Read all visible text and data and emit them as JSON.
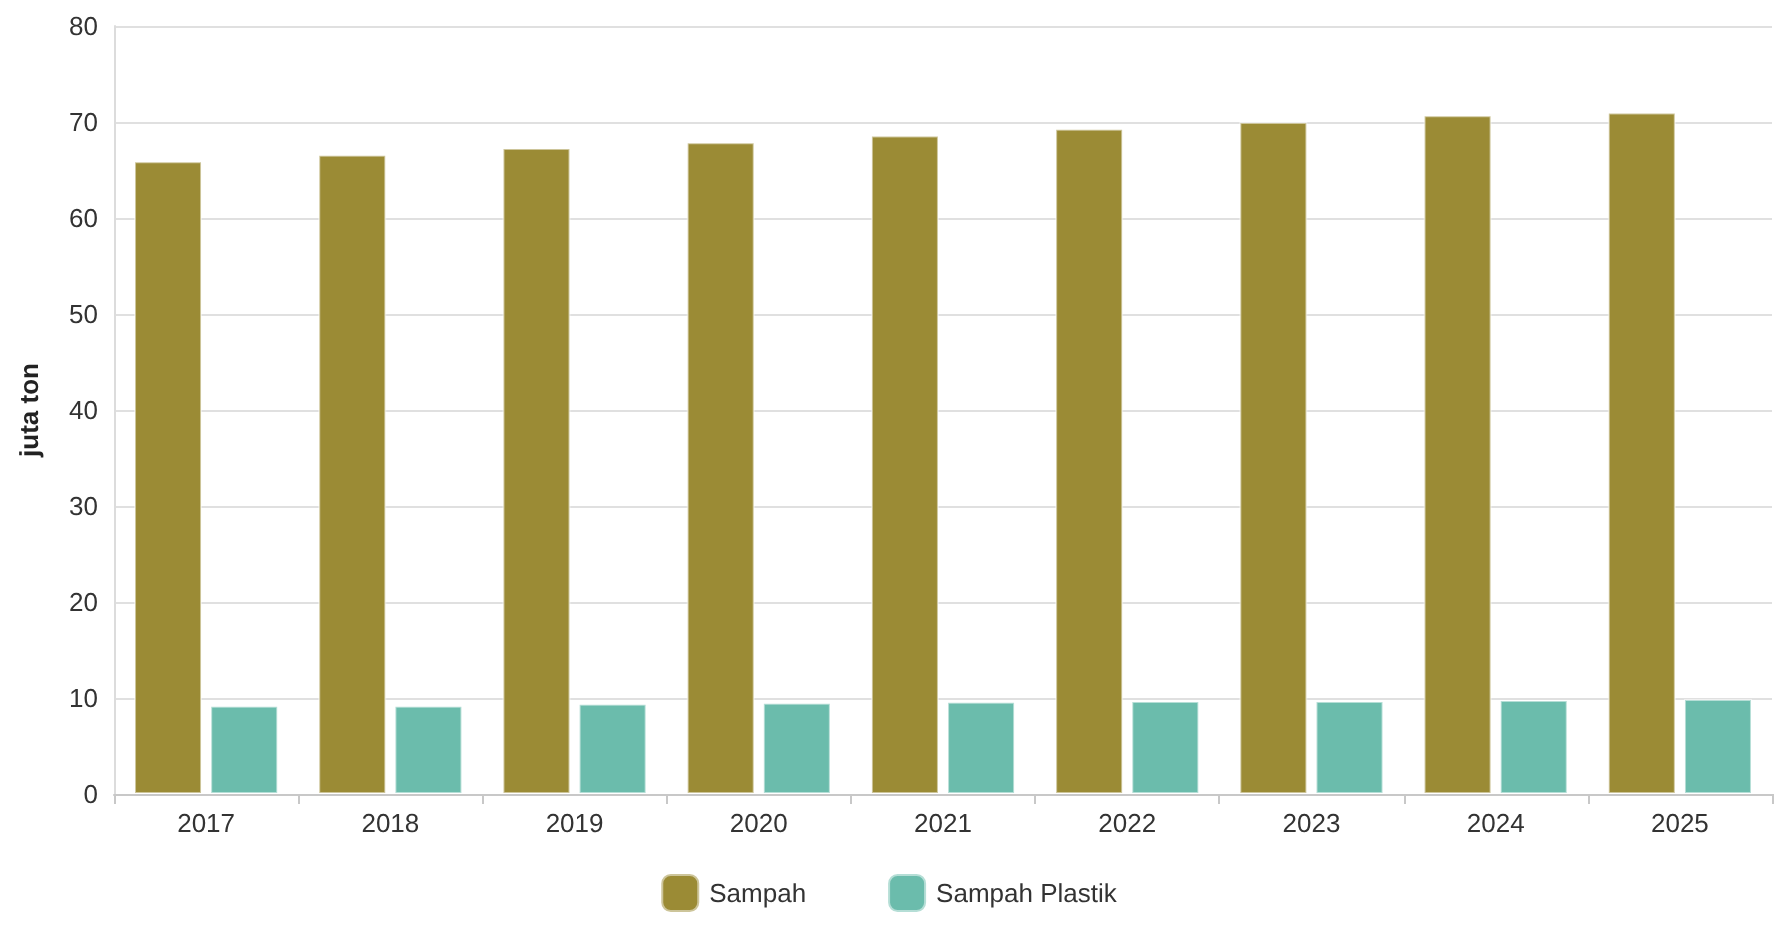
{
  "chart_data": {
    "type": "bar",
    "ylabel": "juta ton",
    "categories": [
      "2017",
      "2018",
      "2019",
      "2020",
      "2021",
      "2022",
      "2023",
      "2024",
      "2025"
    ],
    "series": [
      {
        "name": "Sampah",
        "color": "#9b8b35",
        "values": [
          65.9,
          66.6,
          67.3,
          67.9,
          68.6,
          69.3,
          70.0,
          70.7,
          71.0
        ]
      },
      {
        "name": "Sampah Plastik",
        "color": "#6bbcac",
        "values": [
          9.2,
          9.2,
          9.4,
          9.5,
          9.6,
          9.7,
          9.7,
          9.8,
          9.9
        ]
      }
    ],
    "ylim": [
      0,
      80
    ],
    "yticks": [
      0,
      10,
      20,
      30,
      40,
      50,
      60,
      70,
      80
    ],
    "grid": "y",
    "legend": "bottom"
  }
}
